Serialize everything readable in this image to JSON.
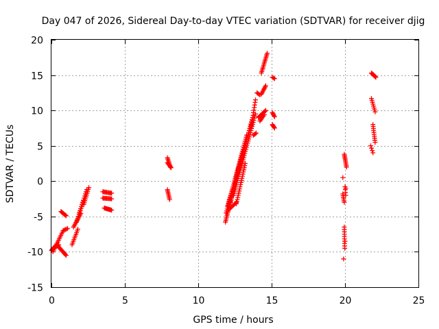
{
  "chart_data": {
    "type": "scatter",
    "title": "Day 047 of 2026, Sidereal Day-to-day VTEC variation (SDTVAR) for receiver djig",
    "xlabel": "GPS time / hours",
    "ylabel": "SDTVAR / TECUs",
    "xlim": [
      0,
      25
    ],
    "ylim": [
      -15,
      20
    ],
    "x_ticks": [
      0,
      5,
      10,
      15,
      20,
      25
    ],
    "y_ticks": [
      -15,
      -10,
      -5,
      0,
      5,
      10,
      15,
      20
    ],
    "grid": true,
    "marker": "+",
    "color": "#ff0000",
    "segments": [
      {
        "x0": 0.0,
        "y0": -9.8,
        "x1": 0.35,
        "y1": -9.0,
        "n": 10
      },
      {
        "x0": 0.1,
        "y0": -9.5,
        "x1": 0.5,
        "y1": -9.0,
        "n": 8
      },
      {
        "x0": 0.45,
        "y0": -9.2,
        "x1": 1.0,
        "y1": -10.5,
        "n": 12
      },
      {
        "x0": 0.1,
        "y0": -10.0,
        "x1": 0.8,
        "y1": -7.0,
        "n": 14
      },
      {
        "x0": 0.8,
        "y0": -7.0,
        "x1": 1.1,
        "y1": -6.7,
        "n": 5
      },
      {
        "x0": 0.65,
        "y0": -4.3,
        "x1": 1.0,
        "y1": -4.9,
        "n": 8
      },
      {
        "x0": 1.4,
        "y0": -9.0,
        "x1": 1.8,
        "y1": -6.8,
        "n": 10
      },
      {
        "x0": 1.5,
        "y0": -6.5,
        "x1": 2.0,
        "y1": -4.6,
        "n": 10
      },
      {
        "x0": 1.7,
        "y0": -5.8,
        "x1": 2.2,
        "y1": -2.8,
        "n": 12
      },
      {
        "x0": 1.9,
        "y0": -4.5,
        "x1": 2.4,
        "y1": -1.2,
        "n": 12
      },
      {
        "x0": 2.2,
        "y0": -3.3,
        "x1": 2.55,
        "y1": -0.9,
        "n": 10
      },
      {
        "x0": 3.5,
        "y0": -1.5,
        "x1": 4.1,
        "y1": -1.7,
        "n": 10
      },
      {
        "x0": 3.5,
        "y0": -2.4,
        "x1": 4.1,
        "y1": -2.5,
        "n": 10
      },
      {
        "x0": 3.6,
        "y0": -3.8,
        "x1": 4.1,
        "y1": -4.1,
        "n": 10
      },
      {
        "x0": 7.9,
        "y0": 3.3,
        "x1": 8.1,
        "y1": 2.0,
        "n": 8
      },
      {
        "x0": 7.9,
        "y0": 2.6,
        "x1": 8.15,
        "y1": 1.9,
        "n": 6
      },
      {
        "x0": 7.9,
        "y0": -1.2,
        "x1": 8.05,
        "y1": -2.6,
        "n": 8
      },
      {
        "x0": 11.85,
        "y0": -5.8,
        "x1": 12.9,
        "y1": 3.0,
        "n": 40
      },
      {
        "x0": 11.9,
        "y0": -4.5,
        "x1": 13.3,
        "y1": 6.5,
        "n": 40
      },
      {
        "x0": 12.0,
        "y0": -3.5,
        "x1": 13.6,
        "y1": 8.0,
        "n": 40
      },
      {
        "x0": 12.2,
        "y0": -3.0,
        "x1": 13.7,
        "y1": 9.0,
        "n": 40
      },
      {
        "x0": 12.4,
        "y0": -2.0,
        "x1": 13.9,
        "y1": 9.5,
        "n": 40
      },
      {
        "x0": 12.6,
        "y0": -3.2,
        "x1": 13.2,
        "y1": 2.5,
        "n": 20
      },
      {
        "x0": 12.1,
        "y0": -4.0,
        "x1": 12.6,
        "y1": -3.0,
        "n": 8
      },
      {
        "x0": 13.6,
        "y0": 7.5,
        "x1": 13.9,
        "y1": 11.5,
        "n": 12
      },
      {
        "x0": 13.75,
        "y0": 6.5,
        "x1": 13.95,
        "y1": 6.8,
        "n": 4
      },
      {
        "x0": 14.0,
        "y0": 12.5,
        "x1": 14.2,
        "y1": 12.2,
        "n": 4
      },
      {
        "x0": 14.1,
        "y0": 9.0,
        "x1": 14.6,
        "y1": 10.0,
        "n": 10
      },
      {
        "x0": 14.2,
        "y0": 8.5,
        "x1": 14.5,
        "y1": 9.4,
        "n": 6
      },
      {
        "x0": 14.3,
        "y0": 12.3,
        "x1": 14.6,
        "y1": 13.5,
        "n": 8
      },
      {
        "x0": 14.3,
        "y0": 15.3,
        "x1": 14.7,
        "y1": 18.1,
        "n": 14
      },
      {
        "x0": 15.05,
        "y0": 14.7,
        "x1": 15.2,
        "y1": 14.5,
        "n": 3
      },
      {
        "x0": 15.05,
        "y0": 9.7,
        "x1": 15.2,
        "y1": 9.1,
        "n": 5
      },
      {
        "x0": 15.05,
        "y0": 8.0,
        "x1": 15.2,
        "y1": 7.5,
        "n": 5
      },
      {
        "x0": 19.85,
        "y0": -1.8,
        "x1": 19.95,
        "y1": -3.0,
        "n": 6
      },
      {
        "x0": 19.95,
        "y0": 3.8,
        "x1": 20.1,
        "y1": 2.0,
        "n": 10
      },
      {
        "x0": 19.95,
        "y0": -6.5,
        "x1": 19.98,
        "y1": -9.5,
        "n": 10
      },
      {
        "x0": 20.0,
        "y0": -0.8,
        "x1": 20.05,
        "y1": -2.0,
        "n": 4
      },
      {
        "x0": 21.8,
        "y0": 15.3,
        "x1": 22.1,
        "y1": 14.7,
        "n": 10
      },
      {
        "x0": 21.8,
        "y0": 11.7,
        "x1": 22.05,
        "y1": 9.8,
        "n": 8
      },
      {
        "x0": 21.9,
        "y0": 8.0,
        "x1": 22.05,
        "y1": 5.5,
        "n": 10
      },
      {
        "x0": 21.75,
        "y0": 5.0,
        "x1": 21.9,
        "y1": 4.0,
        "n": 4
      }
    ],
    "points": [
      {
        "x": 19.9,
        "y": -11.0
      },
      {
        "x": 19.85,
        "y": 0.5
      },
      {
        "x": 20.0,
        "y": -8.5
      },
      {
        "x": 20.05,
        "y": -1.0
      }
    ]
  }
}
